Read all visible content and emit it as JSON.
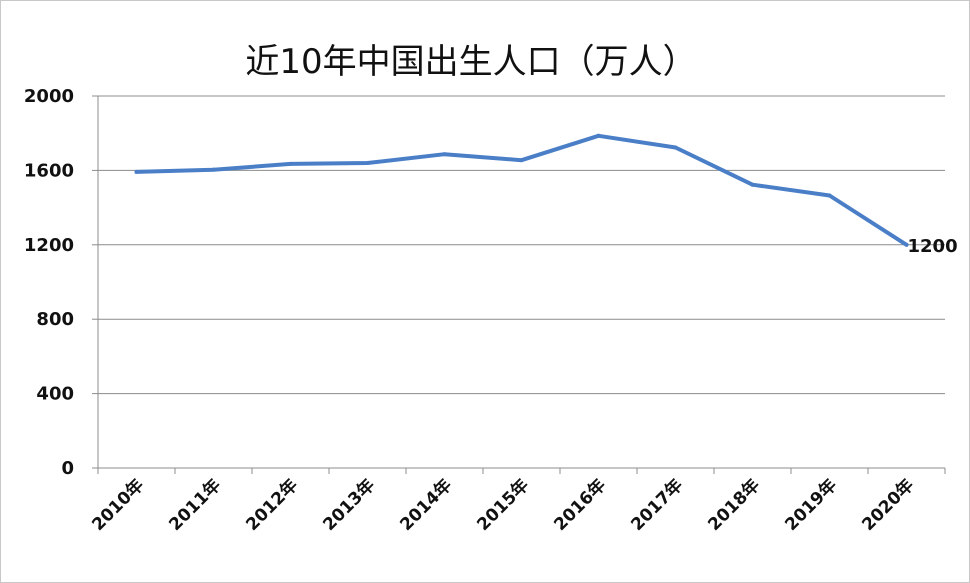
{
  "chart_data": {
    "type": "line",
    "title": "近10年中国出生人口（万人）",
    "xlabel": "",
    "ylabel": "",
    "categories": [
      "2010年",
      "2011年",
      "2012年",
      "2013年",
      "2014年",
      "2015年",
      "2016年",
      "2017年",
      "2018年",
      "2019年",
      "2020年"
    ],
    "series": [
      {
        "values": [
          1592,
          1604,
          1635,
          1640,
          1687,
          1655,
          1786,
          1723,
          1523,
          1465,
          1200
        ],
        "color": "#4a7fc8"
      }
    ],
    "ylim": [
      0,
      2000
    ],
    "yticks": [
      0,
      400,
      800,
      1200,
      1600,
      2000
    ],
    "grid": true,
    "legend": "none",
    "data_labels": [
      {
        "index": 10,
        "text": "1200"
      }
    ]
  }
}
